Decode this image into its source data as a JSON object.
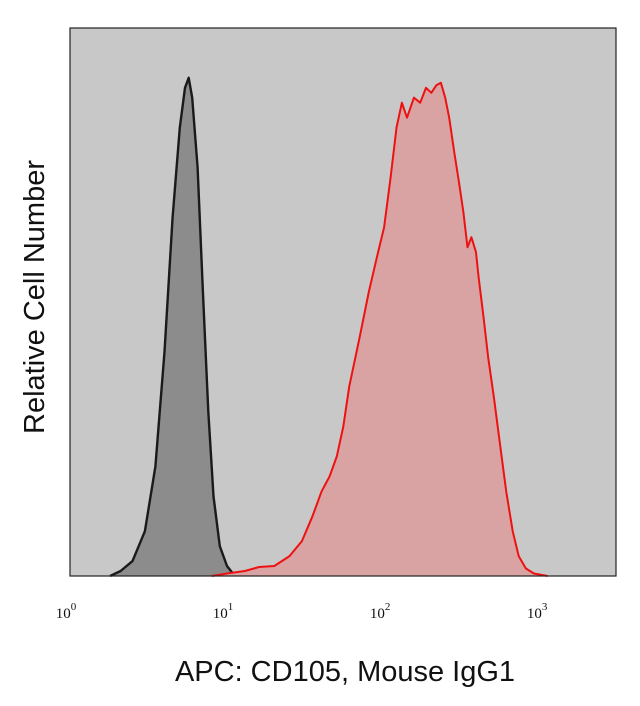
{
  "chart_data": {
    "type": "area",
    "title": "",
    "xlabel": "APC: CD105, Mouse IgG1",
    "ylabel": "Relative Cell Number",
    "x_scale": "log10",
    "xlim": [
      1,
      3000
    ],
    "ylim": [
      0,
      1.1
    ],
    "grid": false,
    "legend": "none",
    "x_ticks": [
      {
        "base": "10",
        "exp": "0",
        "value": 1
      },
      {
        "base": "10",
        "exp": "1",
        "value": 10
      },
      {
        "base": "10",
        "exp": "2",
        "value": 100
      },
      {
        "base": "10",
        "exp": "3",
        "value": 1000
      }
    ],
    "colors": {
      "plot_background": "#c8c8c8",
      "control_line": "#1a1a1a",
      "control_fill": "#8c8c8c",
      "sample_line": "#ee1111",
      "sample_fill": "#d9a3a3"
    },
    "series": [
      {
        "role": "isotype-control",
        "points": [
          [
            1.8,
            0
          ],
          [
            2.1,
            0.01
          ],
          [
            2.5,
            0.03
          ],
          [
            3.0,
            0.09
          ],
          [
            3.5,
            0.22
          ],
          [
            4.0,
            0.45
          ],
          [
            4.5,
            0.72
          ],
          [
            5.0,
            0.9
          ],
          [
            5.4,
            0.98
          ],
          [
            5.7,
            1.0
          ],
          [
            6.0,
            0.96
          ],
          [
            6.5,
            0.82
          ],
          [
            7.0,
            0.58
          ],
          [
            7.6,
            0.33
          ],
          [
            8.2,
            0.16
          ],
          [
            9.0,
            0.06
          ],
          [
            10.0,
            0.02
          ],
          [
            11.2,
            0
          ]
        ]
      },
      {
        "role": "cd105-stained",
        "points": [
          [
            8,
            0
          ],
          [
            10,
            0.005
          ],
          [
            13,
            0.01
          ],
          [
            16,
            0.018
          ],
          [
            20,
            0.02
          ],
          [
            25,
            0.04
          ],
          [
            30,
            0.07
          ],
          [
            35,
            0.12
          ],
          [
            40,
            0.17
          ],
          [
            45,
            0.2
          ],
          [
            50,
            0.24
          ],
          [
            55,
            0.3
          ],
          [
            60,
            0.38
          ],
          [
            70,
            0.48
          ],
          [
            80,
            0.57
          ],
          [
            90,
            0.64
          ],
          [
            100,
            0.7
          ],
          [
            110,
            0.8
          ],
          [
            120,
            0.9
          ],
          [
            130,
            0.95
          ],
          [
            140,
            0.92
          ],
          [
            155,
            0.96
          ],
          [
            170,
            0.95
          ],
          [
            185,
            0.98
          ],
          [
            200,
            0.97
          ],
          [
            215,
            0.985
          ],
          [
            230,
            0.99
          ],
          [
            245,
            0.96
          ],
          [
            260,
            0.92
          ],
          [
            280,
            0.85
          ],
          [
            300,
            0.79
          ],
          [
            320,
            0.73
          ],
          [
            340,
            0.66
          ],
          [
            360,
            0.68
          ],
          [
            385,
            0.65
          ],
          [
            400,
            0.6
          ],
          [
            430,
            0.52
          ],
          [
            460,
            0.44
          ],
          [
            500,
            0.36
          ],
          [
            550,
            0.26
          ],
          [
            600,
            0.17
          ],
          [
            660,
            0.09
          ],
          [
            720,
            0.04
          ],
          [
            800,
            0.015
          ],
          [
            900,
            0.005
          ],
          [
            1100,
            0
          ]
        ]
      }
    ]
  }
}
